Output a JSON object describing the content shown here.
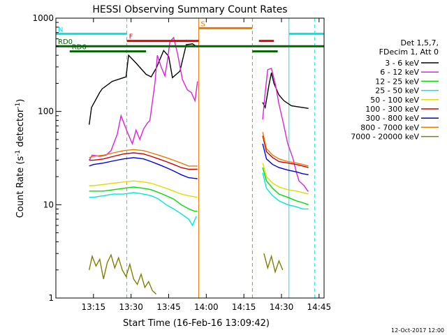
{
  "chart_data": {
    "type": "line",
    "title": "HESSI Observing Summary Count Rates",
    "xlabel": "Start Time (16-Feb-16 13:09:42)",
    "ylabel_parts": [
      "Count Rate (s",
      "-1",
      " detector",
      "-1",
      ")"
    ],
    "yscale": "log",
    "xlim_minutes": [
      780.0,
      887.0
    ],
    "ylim": [
      1,
      1000
    ],
    "x_ticks": [
      {
        "label": "13:15",
        "min": 795
      },
      {
        "label": "13:30",
        "min": 810
      },
      {
        "label": "13:45",
        "min": 825
      },
      {
        "label": "14:00",
        "min": 840
      },
      {
        "label": "14:15",
        "min": 855
      },
      {
        "label": "14:30",
        "min": 870
      },
      {
        "label": "14:45",
        "min": 885
      }
    ],
    "y_ticks": [
      {
        "label": "1",
        "value": 1
      },
      {
        "label": "10",
        "value": 10
      },
      {
        "label": "100",
        "value": 100
      },
      {
        "label": "1000",
        "value": 1000
      }
    ],
    "legend_header": [
      "Det 1,5,7,",
      "FDecim 1, Att 0"
    ],
    "footer_date": "12-Oct-2017 12:00",
    "series": [
      {
        "name": "3 - 6 keV",
        "color": "#000000",
        "x": [
          793.3,
          794.2,
          797.5,
          798.5,
          802.5,
          808.0,
          809.0,
          812.0,
          816.0,
          818.0,
          820.0,
          823.0,
          825.0,
          826.5,
          829.5,
          832.0,
          834.5,
          836.5,
          862.5,
          863.5,
          865.0,
          866.0,
          867.0,
          869.0,
          871.0,
          874.0,
          878.5,
          880.5,
          880.8
        ],
        "y": [
          72,
          110,
          160,
          175,
          210,
          235,
          400,
          330,
          250,
          235,
          290,
          450,
          390,
          230,
          270,
          520,
          530,
          490,
          125,
          110,
          190,
          260,
          200,
          150,
          130,
          115,
          110,
          108,
          108
        ]
      },
      {
        "name": "6 - 12 keV",
        "color": "#dd22dd",
        "x": [
          793.3,
          794.5,
          797.5,
          800.0,
          802.0,
          804.5,
          806.0,
          808.5,
          810.5,
          812.0,
          813.5,
          815.0,
          816.5,
          817.5,
          819.5,
          820.5,
          822.0,
          823.5,
          824.5,
          825.5,
          827.0,
          828.5,
          830.5,
          832.5,
          834.0,
          835.5,
          836.5,
          862.5,
          863.5,
          864.5,
          866.0,
          867.5,
          869.0,
          870.5,
          872.5,
          874.5,
          876.0,
          877.0,
          879.0,
          880.5,
          880.8
        ],
        "y": [
          30,
          34,
          33,
          34,
          38,
          57,
          90,
          60,
          45,
          63,
          50,
          65,
          75,
          80,
          200,
          400,
          300,
          240,
          350,
          560,
          620,
          420,
          220,
          170,
          160,
          130,
          210,
          82,
          160,
          280,
          290,
          200,
          120,
          80,
          45,
          32,
          22,
          18,
          16,
          14,
          14
        ]
      },
      {
        "name": "12 - 25 keV",
        "color": "#00dd00",
        "x": [
          793.3,
          795.0,
          799.0,
          803.0,
          807.0,
          811.0,
          815.0,
          818.0,
          821.0,
          824.0,
          827.0,
          830.0,
          833.0,
          835.5,
          836.5,
          862.5,
          864.0,
          866.5,
          869.0,
          872.5,
          876.0,
          878.5,
          880.8
        ],
        "y": [
          14,
          14,
          14,
          14.5,
          15,
          15.5,
          15,
          14.5,
          13.5,
          12.5,
          11.5,
          10,
          9,
          8.5,
          8.5,
          25,
          18,
          15,
          13,
          12,
          11,
          10.5,
          10
        ]
      },
      {
        "name": "25 - 50 keV",
        "color": "#00e5e5",
        "x": [
          793.3,
          795.0,
          799.0,
          803.0,
          807.0,
          811.0,
          815.0,
          818.0,
          821.0,
          824.0,
          827.0,
          830.0,
          833.0,
          834.5,
          836.0,
          862.5,
          864.0,
          866.5,
          869.0,
          872.5,
          876.0,
          878.5,
          880.8
        ],
        "y": [
          12,
          12,
          12.5,
          13,
          13,
          13.5,
          13,
          12.5,
          11.5,
          10,
          9,
          8,
          7,
          6,
          7.5,
          22,
          15,
          12.5,
          11,
          10,
          9.5,
          9,
          9
        ]
      },
      {
        "name": "50 - 100 keV",
        "color": "#dddd00",
        "x": [
          793.3,
          795.0,
          799.0,
          803.0,
          807.0,
          811.0,
          815.0,
          818.0,
          821.0,
          824.0,
          827.0,
          830.0,
          833.0,
          836.5,
          862.5,
          864.0,
          866.5,
          869.0,
          872.5,
          876.0,
          878.5,
          880.8
        ],
        "y": [
          16,
          16,
          16.5,
          17,
          17.5,
          18,
          17.5,
          17,
          16,
          15,
          14,
          13,
          12.5,
          12,
          28,
          20,
          17,
          15.5,
          14.5,
          14,
          13.5,
          13
        ]
      },
      {
        "name": "100 - 300 keV",
        "color": "#cc0000",
        "x": [
          793.3,
          795.0,
          799.0,
          803.0,
          807.0,
          811.0,
          815.0,
          818.0,
          821.0,
          824.0,
          827.0,
          830.0,
          833.0,
          836.5,
          862.5,
          864.0,
          866.5,
          869.0,
          872.5,
          876.0,
          878.5,
          880.8
        ],
        "y": [
          30,
          30,
          31,
          33,
          35,
          36,
          35,
          33,
          31,
          29,
          27,
          25,
          24,
          24,
          55,
          37,
          32,
          29,
          28,
          27,
          26,
          25
        ]
      },
      {
        "name": "300 - 800 keV",
        "color": "#0000dd",
        "x": [
          793.3,
          795.0,
          799.0,
          803.0,
          807.0,
          811.0,
          815.0,
          818.0,
          821.0,
          824.0,
          827.0,
          830.0,
          833.0,
          836.5,
          862.5,
          864.0,
          866.5,
          869.0,
          872.5,
          876.0,
          878.5,
          880.8
        ],
        "y": [
          26,
          27,
          28,
          29.5,
          31,
          32,
          31,
          29,
          27,
          25,
          23,
          21,
          19.5,
          19,
          45,
          31,
          27,
          25,
          23.5,
          22.5,
          21.5,
          21
        ]
      },
      {
        "name": "800 - 7000 keV",
        "color": "#ee7700",
        "x": [
          793.3,
          795.0,
          799.0,
          803.0,
          807.0,
          811.0,
          815.0,
          818.0,
          821.0,
          824.0,
          827.0,
          830.0,
          833.0,
          836.5,
          862.5,
          864.0,
          866.5,
          869.0,
          872.5,
          876.0,
          878.5,
          880.8
        ],
        "y": [
          32,
          33,
          34,
          36,
          38,
          39,
          38,
          36,
          34,
          32,
          30,
          28,
          26,
          26,
          60,
          40,
          34,
          31,
          29,
          28,
          27,
          26
        ]
      },
      {
        "name": "7000 - 20000 keV",
        "color": "#808000",
        "x": [
          793.3,
          794.5,
          796.0,
          797.5,
          799.0,
          800.5,
          802.0,
          803.5,
          805.0,
          806.5,
          808.0,
          809.5,
          811.0,
          812.5,
          814.0,
          815.5,
          817.0,
          818.5,
          820.0,
          863.0,
          864.5,
          866.0,
          867.5,
          869.0,
          870.5
        ],
        "y": [
          2.0,
          2.8,
          2.2,
          2.6,
          1.6,
          2.4,
          2.9,
          2.1,
          2.7,
          2.0,
          1.7,
          2.3,
          1.6,
          1.4,
          1.8,
          1.3,
          1.5,
          1.2,
          1.1,
          3.0,
          2.1,
          2.8,
          1.9,
          2.5,
          2.0
        ]
      }
    ],
    "vertical_markers": [
      {
        "min": 780.0,
        "color": "#00e5e5",
        "style": "solid"
      },
      {
        "min": 808.3,
        "color": "#00e5e5",
        "style": "dashed"
      },
      {
        "min": 837.0,
        "color": "#ee7700",
        "style": "solid"
      },
      {
        "min": 858.4,
        "color": "#ee7700",
        "style": "dashed"
      },
      {
        "min": 873.0,
        "color": "#00e5e5",
        "style": "solid"
      },
      {
        "min": 883.3,
        "color": "#00e5e5",
        "style": "dashed"
      }
    ],
    "flag_bars": [
      {
        "label": "N",
        "color": "#00e5e5",
        "y": 680,
        "segments": [
          [
            780.0,
            808.3
          ],
          [
            873.0,
            887.0
          ]
        ]
      },
      {
        "label": "F",
        "color": "#ee0000",
        "y": 570,
        "segments": [
          [
            808.3,
            837.0
          ],
          [
            861.0,
            867.0
          ]
        ]
      },
      {
        "label": "S",
        "color": "#ee7700",
        "y": 780,
        "segments": [
          [
            837.0,
            858.4
          ]
        ]
      },
      {
        "label": "RD0",
        "color": "#006600",
        "y": 500,
        "segments": [
          [
            780.0,
            858.4
          ],
          [
            858.4,
            873.0
          ],
          [
            873.0,
            887.0
          ]
        ]
      },
      {
        "label": "RD6",
        "color": "#006600",
        "y": 440,
        "segments": [
          [
            785.5,
            816.0
          ],
          [
            858.4,
            868.5
          ]
        ]
      }
    ]
  }
}
